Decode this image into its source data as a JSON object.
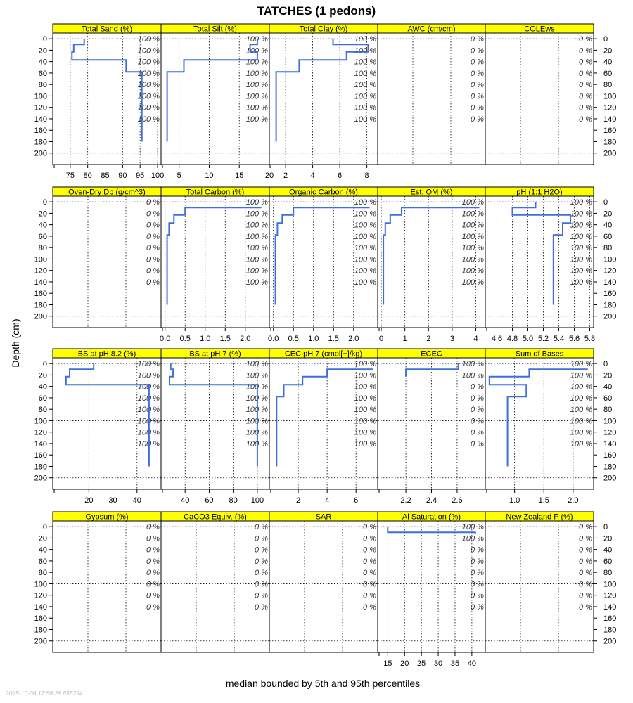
{
  "title": "TATCHES (1 pedons)",
  "ylabel": "Depth (cm)",
  "xlabel": "median bounded by 5th and 95th percentiles",
  "timestamp": "2025-10-08 17:58:29.655294",
  "colors": {
    "strip": "#FFFF00",
    "line": "#3F6FDA",
    "grid": "#000000"
  },
  "chart_data": {
    "type": "line",
    "ylim": [
      220,
      -10
    ],
    "depth_ticks": [
      0,
      20,
      40,
      60,
      80,
      100,
      120,
      140,
      160,
      180,
      200
    ],
    "pct_depths": [
      0,
      20,
      40,
      60,
      80,
      100,
      120,
      140
    ],
    "panels": [
      {
        "name": "Total Sand (%)",
        "xlim": [
          70,
          101
        ],
        "ticks": [
          75,
          80,
          85,
          90,
          95,
          100
        ],
        "tick_labels": [
          "75",
          "80",
          "85",
          "90",
          "95",
          "100"
        ],
        "pct": [
          "100 %",
          "100 %",
          "100 %",
          "100 %",
          "100 %",
          "100 %",
          "100 %",
          "100 %"
        ],
        "profile": [
          [
            79,
            0
          ],
          [
            79,
            10
          ],
          [
            76,
            10
          ],
          [
            76,
            23
          ],
          [
            75.5,
            23
          ],
          [
            75.5,
            37
          ],
          [
            91,
            37
          ],
          [
            91,
            58
          ],
          [
            95.5,
            58
          ],
          [
            95.5,
            180
          ]
        ]
      },
      {
        "name": "Total Silt (%)",
        "xlim": [
          2,
          20
        ],
        "ticks": [
          5,
          10,
          15,
          20
        ],
        "tick_labels": [
          "5",
          "10",
          "15",
          "20"
        ],
        "pct": [
          "100 %",
          "100 %",
          "100 %",
          "100 %",
          "100 %",
          "100 %",
          "100 %",
          "100 %"
        ],
        "profile": [
          [
            18,
            0
          ],
          [
            18,
            10
          ],
          [
            16.8,
            10
          ],
          [
            16.8,
            23
          ],
          [
            18,
            23
          ],
          [
            18,
            37
          ],
          [
            5.8,
            37
          ],
          [
            5.8,
            58
          ],
          [
            3,
            58
          ],
          [
            3,
            180
          ]
        ]
      },
      {
        "name": "Total Clay (%)",
        "xlim": [
          0.8,
          8.8
        ],
        "ticks": [
          2,
          4,
          6,
          8
        ],
        "tick_labels": [
          "2",
          "4",
          "6",
          "8"
        ],
        "pct": [
          "100 %",
          "100 %",
          "100 %",
          "100 %",
          "100 %",
          "100 %",
          "100 %",
          "100 %"
        ],
        "profile": [
          [
            5.5,
            0
          ],
          [
            5.5,
            10
          ],
          [
            8.1,
            10
          ],
          [
            8.1,
            23
          ],
          [
            6.5,
            23
          ],
          [
            6.5,
            37
          ],
          [
            3,
            37
          ],
          [
            3,
            58
          ],
          [
            1.3,
            58
          ],
          [
            1.3,
            180
          ]
        ]
      },
      {
        "name": "AWC (cm/cm)",
        "xlim": null,
        "ticks": [],
        "tick_labels": [],
        "pct": [
          "0 %",
          "0 %",
          "0 %",
          "0 %",
          "0 %",
          "0 %",
          "0 %",
          "0 %"
        ],
        "profile": []
      },
      {
        "name": "COLEws",
        "xlim": null,
        "ticks": [],
        "tick_labels": [],
        "pct": [
          "0 %",
          "0 %",
          "0 %",
          "0 %",
          "0 %",
          "0 %",
          "0 %",
          "0 %"
        ],
        "profile": []
      },
      {
        "name": "Oven-Dry Db (g/cm^3)",
        "xlim": null,
        "ticks": [],
        "tick_labels": [],
        "pct": [
          "0 %",
          "0 %",
          "0 %",
          "0 %",
          "0 %",
          "0 %",
          "0 %",
          "0 %"
        ],
        "profile": []
      },
      {
        "name": "Total Carbon (%)",
        "xlim": [
          -0.1,
          2.6
        ],
        "ticks": [
          0,
          0.5,
          1,
          1.5,
          2
        ],
        "tick_labels": [
          "0.0",
          "0.5",
          "1.0",
          "1.5",
          "2.0"
        ],
        "pct": [
          "100 %",
          "100 %",
          "100 %",
          "100 %",
          "100 %",
          "100 %",
          "100 %",
          "100 %"
        ],
        "profile": [
          [
            2.4,
            10
          ],
          [
            0.5,
            10
          ],
          [
            0.5,
            23
          ],
          [
            0.22,
            23
          ],
          [
            0.22,
            37
          ],
          [
            0.1,
            37
          ],
          [
            0.1,
            58
          ],
          [
            0.05,
            58
          ],
          [
            0.05,
            180
          ]
        ]
      },
      {
        "name": "Organic Carbon (%)",
        "xlim": [
          -0.1,
          2.6
        ],
        "ticks": [
          0,
          0.5,
          1,
          1.5,
          2
        ],
        "tick_labels": [
          "0.0",
          "0.5",
          "1.0",
          "1.5",
          "2.0"
        ],
        "pct": [
          "100 %",
          "100 %",
          "100 %",
          "100 %",
          "100 %",
          "100 %",
          "100 %",
          "100 %"
        ],
        "profile": [
          [
            2.4,
            10
          ],
          [
            0.5,
            10
          ],
          [
            0.5,
            23
          ],
          [
            0.22,
            23
          ],
          [
            0.22,
            37
          ],
          [
            0.1,
            37
          ],
          [
            0.1,
            58
          ],
          [
            0.05,
            58
          ],
          [
            0.05,
            180
          ]
        ]
      },
      {
        "name": "Est. OM (%)",
        "xlim": [
          -0.15,
          4.4
        ],
        "ticks": [
          0,
          1,
          2,
          3,
          4
        ],
        "tick_labels": [
          "0",
          "1",
          "2",
          "3",
          "4"
        ],
        "pct": [
          "100 %",
          "100 %",
          "100 %",
          "100 %",
          "100 %",
          "100 %",
          "100 %",
          "100 %"
        ],
        "profile": [
          [
            4.15,
            10
          ],
          [
            0.86,
            10
          ],
          [
            0.86,
            23
          ],
          [
            0.38,
            23
          ],
          [
            0.38,
            37
          ],
          [
            0.17,
            37
          ],
          [
            0.17,
            58
          ],
          [
            0.09,
            58
          ],
          [
            0.09,
            180
          ]
        ]
      },
      {
        "name": "pH (1:1 H2O)",
        "xlim": [
          4.45,
          5.85
        ],
        "ticks": [
          4.6,
          4.8,
          5,
          5.2,
          5.4,
          5.6,
          5.8
        ],
        "tick_labels": [
          "4.6",
          "4.8",
          "5.0",
          "5.2",
          "5.4",
          "5.6",
          "5.8"
        ],
        "pct": [
          "100 %",
          "100 %",
          "100 %",
          "100 %",
          "100 %",
          "100 %",
          "100 %",
          "100 %"
        ],
        "profile": [
          [
            5.1,
            0
          ],
          [
            5.1,
            10
          ],
          [
            4.8,
            10
          ],
          [
            4.8,
            23
          ],
          [
            5.55,
            23
          ],
          [
            5.55,
            37
          ],
          [
            5.45,
            37
          ],
          [
            5.45,
            58
          ],
          [
            5.33,
            58
          ],
          [
            5.33,
            180
          ]
        ]
      },
      {
        "name": "BS at pH 8.2 (%)",
        "xlim": [
          5,
          50
        ],
        "ticks": [
          20,
          30,
          40
        ],
        "tick_labels": [
          "20",
          "30",
          "40"
        ],
        "pct": [
          "100 %",
          "100 %",
          "100 %",
          "100 %",
          "100 %",
          "100 %",
          "100 %",
          "100 %"
        ],
        "profile": [
          [
            22,
            0
          ],
          [
            22,
            10
          ],
          [
            12,
            10
          ],
          [
            12,
            23
          ],
          [
            10.5,
            23
          ],
          [
            10.5,
            37
          ],
          [
            45,
            37
          ],
          [
            45,
            180
          ]
        ]
      },
      {
        "name": "BS at pH 7 (%)",
        "xlim": [
          20,
          110
        ],
        "ticks": [
          40,
          60,
          80,
          100
        ],
        "tick_labels": [
          "40",
          "60",
          "80",
          "100"
        ],
        "pct": [
          "100 %",
          "100 %",
          "100 %",
          "100 %",
          "100 %",
          "100 %",
          "100 %",
          "100 %"
        ],
        "profile": [
          [
            28,
            0
          ],
          [
            28,
            10
          ],
          [
            30,
            10
          ],
          [
            30,
            23
          ],
          [
            27,
            23
          ],
          [
            27,
            37
          ],
          [
            100,
            37
          ],
          [
            100,
            180
          ]
        ]
      },
      {
        "name": "CEC pH 7 (cmol[+]/kg)",
        "xlim": [
          0,
          7.5
        ],
        "ticks": [
          2,
          4,
          6
        ],
        "tick_labels": [
          "2",
          "4",
          "6"
        ],
        "pct": [
          "100 %",
          "100 %",
          "100 %",
          "100 %",
          "100 %",
          "100 %",
          "100 %",
          "100 %"
        ],
        "profile": [
          [
            7.2,
            10
          ],
          [
            4,
            10
          ],
          [
            4,
            23
          ],
          [
            2.3,
            23
          ],
          [
            2.3,
            37
          ],
          [
            1,
            37
          ],
          [
            1,
            58
          ],
          [
            0.5,
            58
          ],
          [
            0.5,
            180
          ]
        ]
      },
      {
        "name": "ECEC",
        "xlim": [
          1.98,
          2.82
        ],
        "ticks": [
          2.2,
          2.4,
          2.6
        ],
        "tick_labels": [
          "2.2",
          "2.4",
          "2.6"
        ],
        "pct": [
          "100 %",
          "100 %",
          "0 %",
          "0 %",
          "0 %",
          "0 %",
          "0 %",
          "0 %"
        ],
        "profile": [
          [
            2.2,
            23
          ],
          [
            2.2,
            10
          ],
          [
            2.61,
            10
          ],
          [
            2.61,
            0
          ]
        ]
      },
      {
        "name": "Sum of Bases",
        "xlim": [
          0.5,
          2.35
        ],
        "ticks": [
          1,
          1.5,
          2
        ],
        "tick_labels": [
          "1.0",
          "1.5",
          "2.0"
        ],
        "pct": [
          "100 %",
          "100 %",
          "100 %",
          "100 %",
          "100 %",
          "100 %",
          "100 %",
          "100 %"
        ],
        "profile": [
          [
            2.25,
            10
          ],
          [
            1.25,
            10
          ],
          [
            1.25,
            23
          ],
          [
            0.57,
            23
          ],
          [
            0.57,
            37
          ],
          [
            1.2,
            37
          ],
          [
            1.2,
            58
          ],
          [
            0.88,
            58
          ],
          [
            0.88,
            180
          ]
        ]
      },
      {
        "name": "Gypsum (%)",
        "xlim": null,
        "ticks": [],
        "tick_labels": [],
        "pct": [
          "0 %",
          "0 %",
          "0 %",
          "0 %",
          "0 %",
          "0 %",
          "0 %",
          "0 %"
        ],
        "profile": []
      },
      {
        "name": "CaCO3 Equiv. (%)",
        "xlim": null,
        "ticks": [],
        "tick_labels": [],
        "pct": [
          "0 %",
          "0 %",
          "0 %",
          "0 %",
          "0 %",
          "0 %",
          "0 %",
          "0 %"
        ],
        "profile": []
      },
      {
        "name": "SAR",
        "xlim": null,
        "ticks": [],
        "tick_labels": [],
        "pct": [
          "0 %",
          "0 %",
          "0 %",
          "0 %",
          "0 %",
          "0 %",
          "0 %",
          "0 %"
        ],
        "profile": []
      },
      {
        "name": "Al Saturation (%)",
        "xlim": [
          12,
          44
        ],
        "ticks": [
          15,
          20,
          25,
          30,
          35,
          40
        ],
        "tick_labels": [
          "15",
          "20",
          "25",
          "30",
          "35",
          "40"
        ],
        "pct": [
          "100 %",
          "100 %",
          "0 %",
          "0 %",
          "0 %",
          "0 %",
          "0 %",
          "0 %"
        ],
        "profile": [
          [
            15,
            0
          ],
          [
            15,
            10
          ],
          [
            41,
            10
          ],
          [
            41,
            13
          ]
        ]
      },
      {
        "name": "New Zealand P (%)",
        "xlim": null,
        "ticks": [],
        "tick_labels": [],
        "pct": [
          "0 %",
          "0 %",
          "0 %",
          "0 %",
          "0 %",
          "0 %",
          "0 %",
          "0 %"
        ],
        "profile": []
      }
    ]
  }
}
